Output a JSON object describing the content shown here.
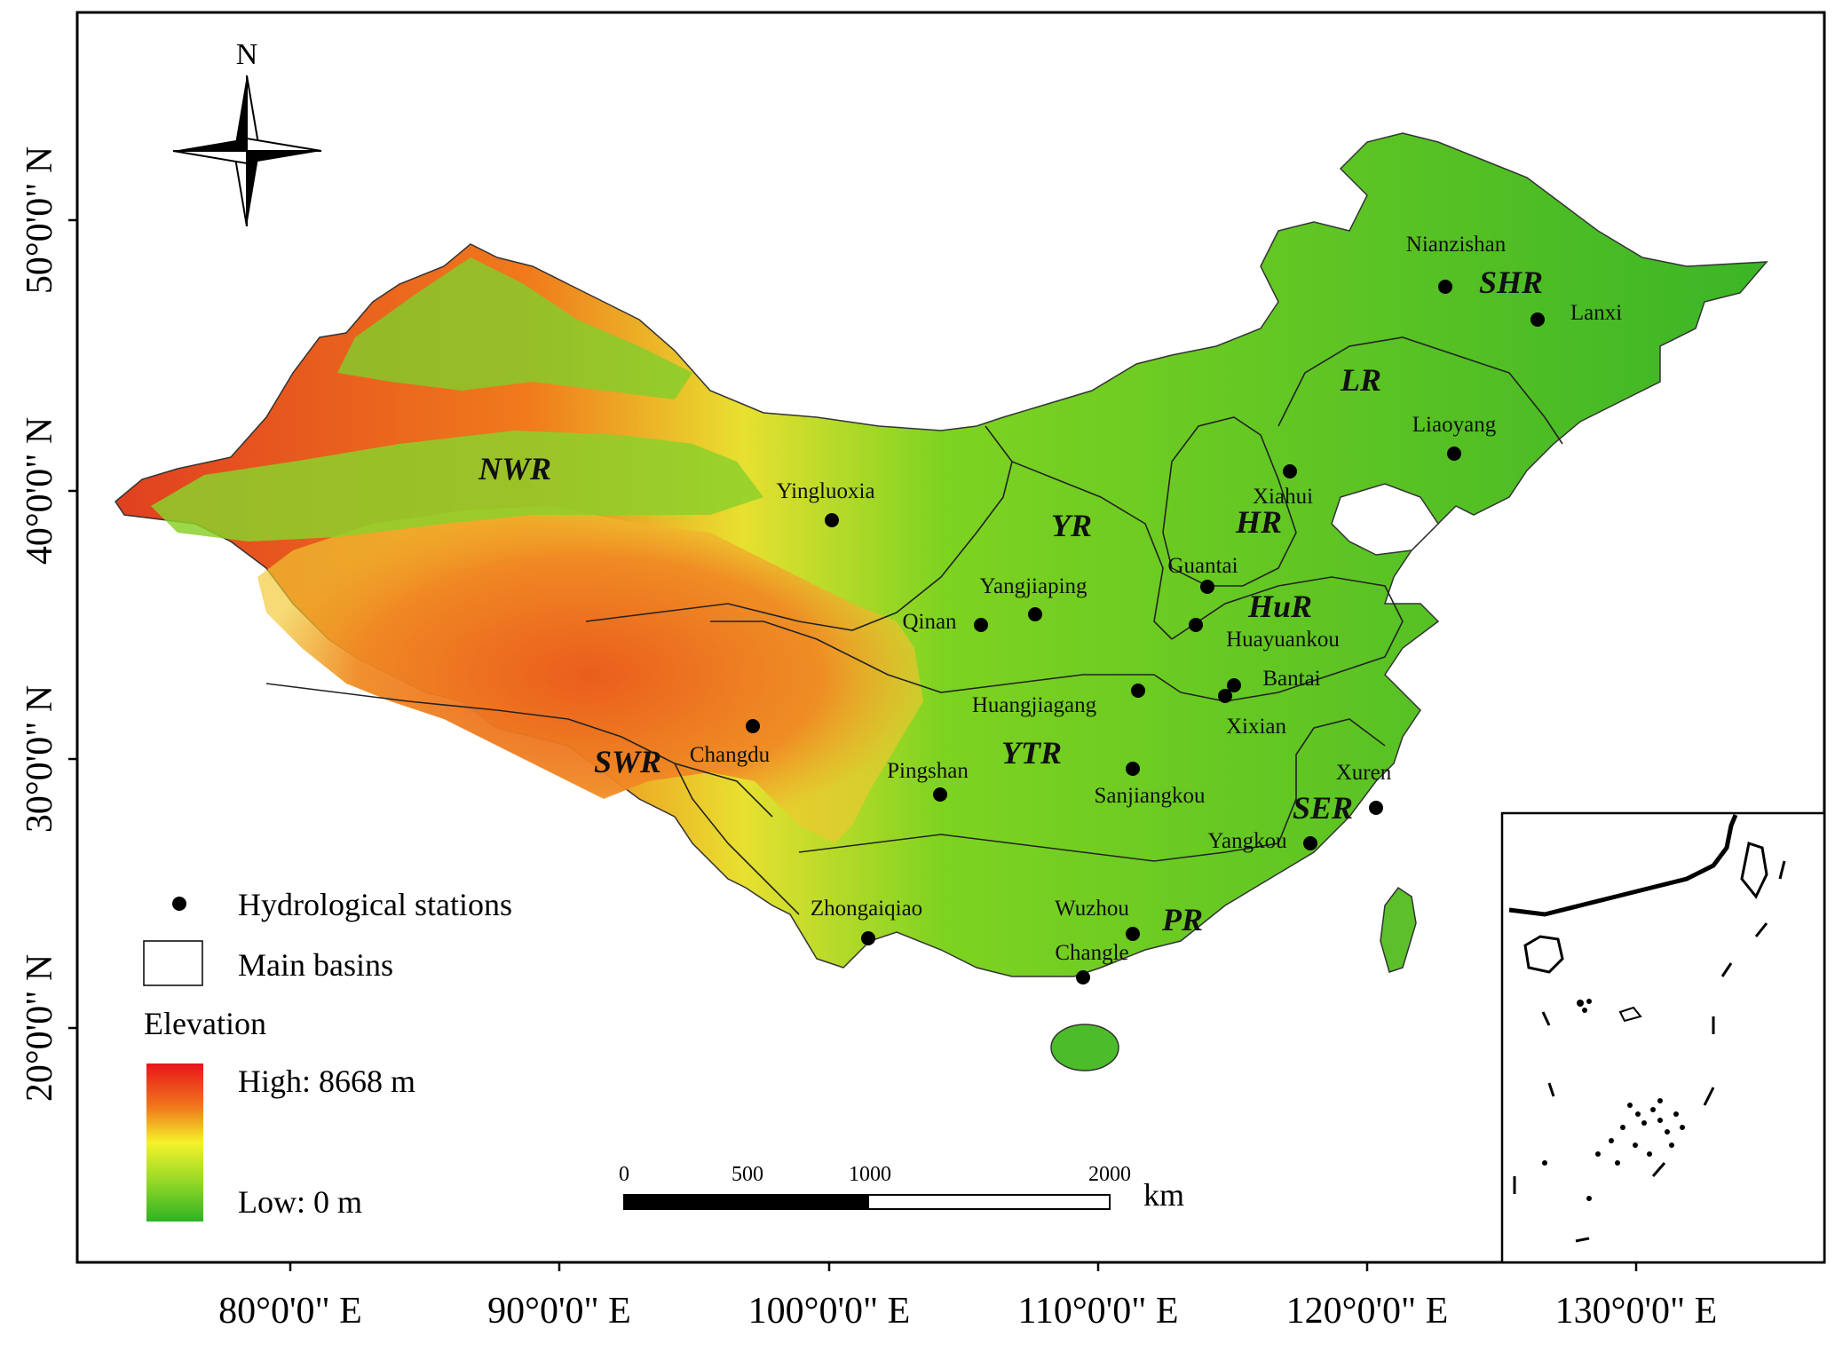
{
  "map": {
    "north_label": "N",
    "lat_ticks": [
      {
        "label": "50°0'0\" N",
        "lat": 50
      },
      {
        "label": "40°0'0\" N",
        "lat": 40
      },
      {
        "label": "30°0'0\" N",
        "lat": 30
      },
      {
        "label": "20°0'0\" N",
        "lat": 20
      }
    ],
    "lon_ticks": [
      {
        "label": "80°0'0\" E",
        "lon": 80
      },
      {
        "label": "90°0'0\" E",
        "lon": 90
      },
      {
        "label": "100°0'0\" E",
        "lon": 100
      },
      {
        "label": "110°0'0\" E",
        "lon": 110
      },
      {
        "label": "120°0'0\" E",
        "lon": 120
      },
      {
        "label": "130°0'0\" E",
        "lon": 130
      }
    ],
    "basins": [
      {
        "code": "NWR"
      },
      {
        "code": "SHR"
      },
      {
        "code": "LR"
      },
      {
        "code": "HR"
      },
      {
        "code": "YR"
      },
      {
        "code": "HuR"
      },
      {
        "code": "YTR"
      },
      {
        "code": "SWR"
      },
      {
        "code": "SER"
      },
      {
        "code": "PR"
      }
    ],
    "stations": [
      {
        "name": "Nianzishan"
      },
      {
        "name": "Lanxi"
      },
      {
        "name": "Liaoyang"
      },
      {
        "name": "Xiahui"
      },
      {
        "name": "Yingluoxia"
      },
      {
        "name": "Guantai"
      },
      {
        "name": "Yangjiaping"
      },
      {
        "name": "Qinan"
      },
      {
        "name": "Huayuankou"
      },
      {
        "name": "Bantai"
      },
      {
        "name": "Huangjiagang"
      },
      {
        "name": "Xixian"
      },
      {
        "name": "Changdu"
      },
      {
        "name": "Pingshan"
      },
      {
        "name": "Sanjiangkou"
      },
      {
        "name": "Xuren"
      },
      {
        "name": "Yangkou"
      },
      {
        "name": "Zhongaiqiao"
      },
      {
        "name": "Wuzhou"
      },
      {
        "name": "Changle"
      }
    ],
    "legend": {
      "stations_label": "Hydrological stations",
      "basins_label": "Main basins",
      "elevation_title": "Elevation",
      "high_label": "High: 8668 m",
      "low_label": "Low: 0 m",
      "colors": {
        "high": "#e8141b",
        "mid_high": "#f07a1c",
        "mid": "#f5f22a",
        "low": "#2db322"
      }
    },
    "scale_bar": {
      "ticks": [
        "0",
        "500",
        "1000",
        "2000"
      ],
      "unit": "km"
    }
  }
}
